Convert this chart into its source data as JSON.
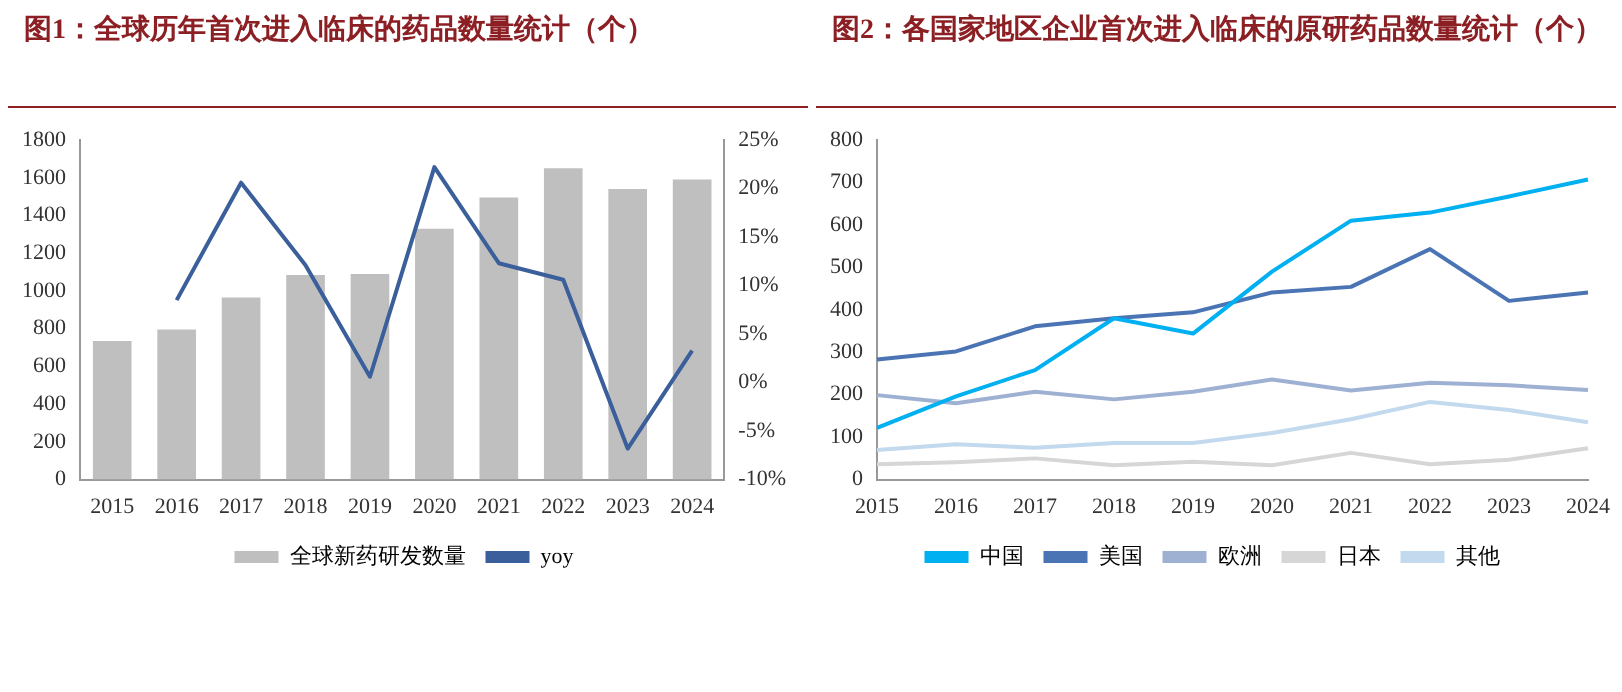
{
  "chart_data": [
    {
      "type": "bar",
      "title": "图1：全球历年首次进入临床的药品数量统计（个）",
      "categories": [
        "2015",
        "2016",
        "2017",
        "2018",
        "2019",
        "2020",
        "2021",
        "2022",
        "2023",
        "2024"
      ],
      "series": [
        {
          "name": "全球新药研发数量",
          "type": "bar",
          "color": "#bfbfbf",
          "values": [
            735,
            795,
            965,
            1085,
            1090,
            1330,
            1495,
            1650,
            1540,
            1590
          ]
        },
        {
          "name": "yoy",
          "type": "line",
          "axis": "y2",
          "color": "#3a5f9b",
          "values": [
            null,
            8.5,
            20.6,
            12.1,
            0.6,
            22.2,
            12.3,
            10.6,
            -6.8,
            3.3
          ]
        }
      ],
      "ylim": [
        0,
        1800
      ],
      "yticks": [
        0,
        200,
        400,
        600,
        800,
        1000,
        1200,
        1400,
        1600,
        1800
      ],
      "y2lim": [
        -10,
        25
      ],
      "y2ticks": [
        {
          "value": -10,
          "label": "-10%"
        },
        {
          "value": -5,
          "label": "-5%"
        },
        {
          "value": 0,
          "label": "0%"
        },
        {
          "value": 5,
          "label": "5%"
        },
        {
          "value": 10,
          "label": "10%"
        },
        {
          "value": 15,
          "label": "15%"
        },
        {
          "value": 20,
          "label": "20%"
        },
        {
          "value": 25,
          "label": "25%"
        }
      ],
      "legend": "bottom",
      "marker": "none"
    },
    {
      "type": "line",
      "title": "图2：各国家地区企业首次进入临床的原研药品数量统计（个）",
      "categories": [
        "2015",
        "2016",
        "2017",
        "2018",
        "2019",
        "2020",
        "2021",
        "2022",
        "2023",
        "2024"
      ],
      "series": [
        {
          "name": "中国",
          "color": "#00b0f0",
          "values": [
            122,
            196,
            258,
            380,
            344,
            490,
            610,
            629,
            667,
            707
          ]
        },
        {
          "name": "美国",
          "color": "#4a74b4",
          "values": [
            283,
            302,
            361,
            380,
            394,
            441,
            454,
            543,
            421,
            441
          ]
        },
        {
          "name": "欧洲",
          "color": "#9fb1d3",
          "values": [
            199,
            180,
            207,
            189,
            207,
            236,
            210,
            228,
            222,
            211
          ]
        },
        {
          "name": "日本",
          "color": "#d6d6d6",
          "values": [
            36,
            41,
            50,
            34,
            42,
            34,
            63,
            36,
            47,
            74
          ]
        },
        {
          "name": "其他",
          "color": "#c2d9ee",
          "values": [
            70,
            83,
            75,
            86,
            86,
            110,
            142,
            183,
            164,
            135
          ]
        }
      ],
      "ylim": [
        0,
        800
      ],
      "yticks": [
        0,
        100,
        200,
        300,
        400,
        500,
        600,
        700,
        800
      ],
      "legend": "bottom",
      "marker": "none"
    }
  ]
}
